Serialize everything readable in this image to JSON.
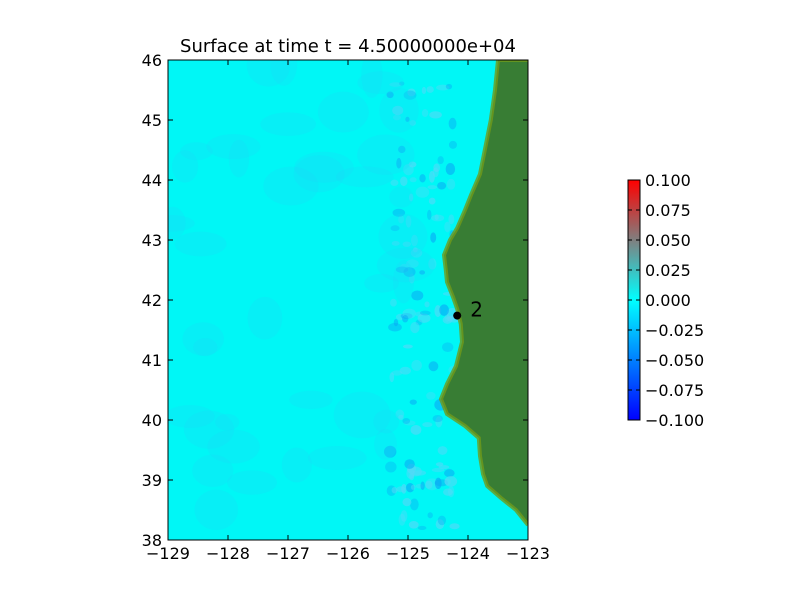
{
  "chart_data": {
    "type": "heatmap",
    "title": "Surface at time t = 4.50000000e+04",
    "xlabel": "",
    "ylabel": "",
    "xlim": [
      -129,
      -123
    ],
    "ylim": [
      38,
      46
    ],
    "x_ticks": [
      -129,
      -128,
      -127,
      -126,
      -125,
      -124,
      -123
    ],
    "x_tick_labels": [
      "−129",
      "−128",
      "−127",
      "−126",
      "−125",
      "−124",
      "−123"
    ],
    "y_ticks": [
      38,
      39,
      40,
      41,
      42,
      43,
      44,
      45,
      46
    ],
    "y_tick_labels": [
      "38",
      "39",
      "40",
      "41",
      "42",
      "43",
      "44",
      "45",
      "46"
    ],
    "colorbar": {
      "min": -0.1,
      "max": 0.1,
      "ticks": [
        0.1,
        0.075,
        0.05,
        0.025,
        0.0,
        -0.025,
        -0.05,
        -0.075,
        -0.1
      ],
      "tick_labels": [
        "0.100",
        "0.075",
        "0.050",
        "0.025",
        "0.000",
        "−0.025",
        "−0.050",
        "−0.075",
        "−0.100"
      ],
      "colors": [
        "#0000ff",
        "#00ffff",
        "#ff0000"
      ]
    },
    "gauges": [
      {
        "label": "2",
        "lon": -124.18,
        "lat": 41.74
      }
    ],
    "coastline": [
      [
        -123.0,
        46.0
      ],
      [
        -123.5,
        46.0
      ],
      [
        -123.55,
        45.5
      ],
      [
        -123.62,
        45.0
      ],
      [
        -123.72,
        44.5
      ],
      [
        -123.8,
        44.1
      ],
      [
        -123.95,
        43.75
      ],
      [
        -124.05,
        43.5
      ],
      [
        -124.18,
        43.2
      ],
      [
        -124.3,
        43.0
      ],
      [
        -124.4,
        42.75
      ],
      [
        -124.37,
        42.5
      ],
      [
        -124.35,
        42.3
      ],
      [
        -124.25,
        42.05
      ],
      [
        -124.18,
        41.85
      ],
      [
        -124.12,
        41.6
      ],
      [
        -124.1,
        41.3
      ],
      [
        -124.15,
        41.1
      ],
      [
        -124.2,
        40.9
      ],
      [
        -124.35,
        40.6
      ],
      [
        -124.45,
        40.35
      ],
      [
        -124.35,
        40.1
      ],
      [
        -124.05,
        39.9
      ],
      [
        -123.82,
        39.7
      ],
      [
        -123.8,
        39.4
      ],
      [
        -123.75,
        39.1
      ],
      [
        -123.68,
        38.9
      ],
      [
        -123.45,
        38.7
      ],
      [
        -123.2,
        38.5
      ],
      [
        -123.0,
        38.25
      ]
    ],
    "colors": {
      "ocean": "#00f7f6",
      "land": "#387d34",
      "land_highlight": "#6f9a1c",
      "gauge": "#000000"
    }
  }
}
